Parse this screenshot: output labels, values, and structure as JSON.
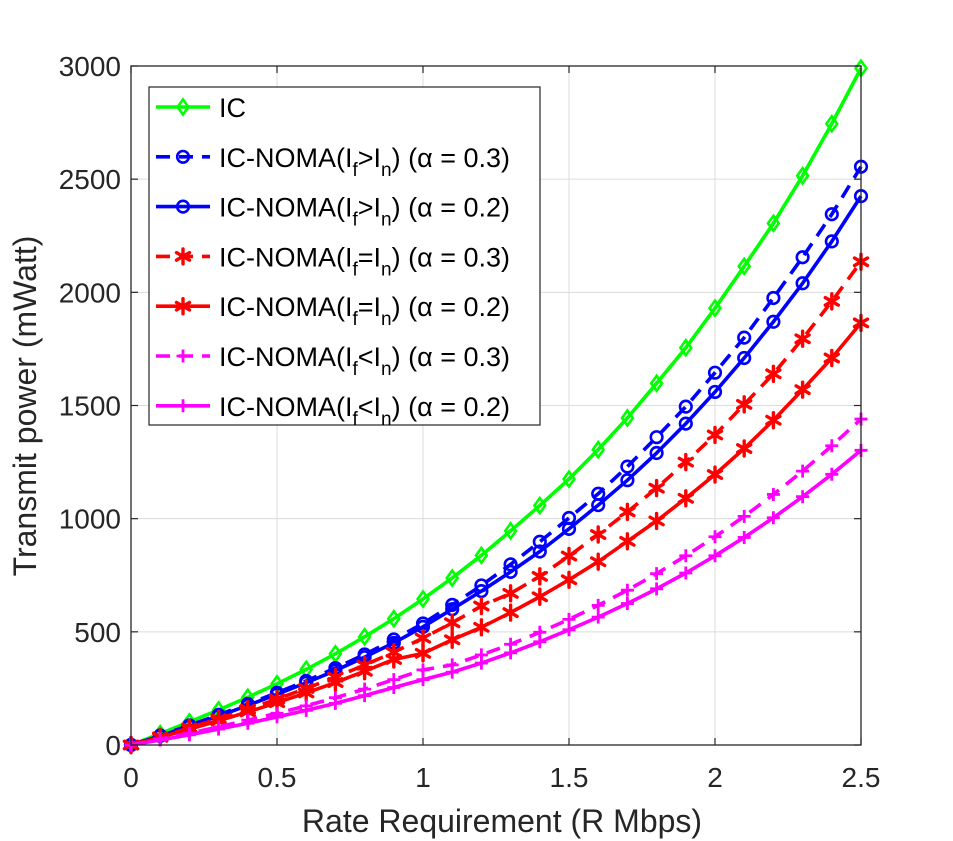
{
  "chart_data": {
    "type": "line",
    "xlabel": "Rate Requirement (R Mbps)",
    "ylabel": "Transmit power (mWatt)",
    "xlim": [
      0,
      2.5
    ],
    "ylim": [
      0,
      3000
    ],
    "xticks": [
      0,
      0.5,
      1,
      1.5,
      2,
      2.5
    ],
    "xtick_labels": [
      "0",
      "0.5",
      "1",
      "1.5",
      "2",
      "2.5"
    ],
    "yticks": [
      0,
      500,
      1000,
      1500,
      2000,
      2500,
      3000
    ],
    "ytick_labels": [
      "0",
      "500",
      "1000",
      "1500",
      "2000",
      "2500",
      "3000"
    ],
    "grid": true,
    "legend_position": "top-left",
    "x": [
      0,
      0.1,
      0.2,
      0.3,
      0.4,
      0.5,
      0.6,
      0.7,
      0.8,
      0.9,
      1.0,
      1.1,
      1.2,
      1.3,
      1.4,
      1.5,
      1.6,
      1.7,
      1.8,
      1.9,
      2.0,
      2.1,
      2.2,
      2.3,
      2.4,
      2.5
    ],
    "series": [
      {
        "name": "IC",
        "legend": {
          "pre": "IC",
          "sub1": "",
          "mid": "",
          "sub2": "",
          "post": ""
        },
        "color": "#00ff00",
        "dash": "solid",
        "marker": "diamond",
        "values": [
          0,
          50,
          102,
          155,
          211,
          270,
          334,
          403,
          478,
          558,
          645,
          738,
          838,
          946,
          1058,
          1175,
          1305,
          1445,
          1598,
          1755,
          1930,
          2115,
          2305,
          2515,
          2745,
          2990
        ]
      },
      {
        "name": "IC-NOMA(If>In) (α = 0.3)",
        "legend": {
          "pre": "IC-NOMA(I",
          "sub1": "f",
          "mid": ">I",
          "sub2": "n",
          "post": ") (α = 0.3)"
        },
        "color": "#0000ff",
        "dash": "dashed",
        "marker": "circle",
        "values": [
          0,
          42,
          87,
          133,
          181,
          231,
          283,
          340,
          400,
          466,
          537,
          619,
          705,
          798,
          898,
          1003,
          1110,
          1230,
          1360,
          1495,
          1645,
          1800,
          1975,
          2155,
          2345,
          2555
        ]
      },
      {
        "name": "IC-NOMA(If>In) (α = 0.2)",
        "legend": {
          "pre": "IC-NOMA(I",
          "sub1": "f",
          "mid": ">I",
          "sub2": "n",
          "post": ") (α = 0.2)"
        },
        "color": "#0000ff",
        "dash": "solid",
        "marker": "circle",
        "values": [
          0,
          40,
          83,
          128,
          175,
          224,
          275,
          329,
          388,
          451,
          522,
          600,
          680,
          765,
          855,
          955,
          1060,
          1170,
          1290,
          1420,
          1560,
          1710,
          1870,
          2040,
          2225,
          2425
        ]
      },
      {
        "name": "IC-NOMA(If=In) (α = 0.3)",
        "legend": {
          "pre": "IC-NOMA(I",
          "sub1": "f",
          "mid": "=I",
          "sub2": "n",
          "post": ") (α = 0.3)"
        },
        "color": "#ff0000",
        "dash": "dashed",
        "marker": "star",
        "values": [
          0,
          36,
          76,
          116,
          158,
          203,
          250,
          300,
          353,
          410,
          472,
          540,
          614,
          670,
          745,
          835,
          930,
          1030,
          1135,
          1250,
          1370,
          1505,
          1640,
          1795,
          1960,
          2135
        ]
      },
      {
        "name": "IC-NOMA(If=In) (α = 0.2)",
        "legend": {
          "pre": "IC-NOMA(I",
          "sub1": "f",
          "mid": "=I",
          "sub2": "n",
          "post": ") (α = 0.2)"
        },
        "color": "#ff0000",
        "dash": "solid",
        "marker": "star",
        "values": [
          0,
          34,
          70,
          107,
          146,
          187,
          230,
          276,
          326,
          378,
          405,
          465,
          520,
          585,
          655,
          730,
          810,
          900,
          990,
          1090,
          1195,
          1310,
          1435,
          1570,
          1710,
          1865
        ]
      },
      {
        "name": "IC-NOMA(If<In) (α = 0.3)",
        "legend": {
          "pre": "IC-NOMA(I",
          "sub1": "f",
          "mid": "<I",
          "sub2": "n",
          "post": ") (α = 0.3)"
        },
        "color": "#ff00ff",
        "dash": "dashed",
        "marker": "plus",
        "values": [
          0,
          26,
          52,
          80,
          110,
          140,
          173,
          209,
          247,
          289,
          332,
          354,
          398,
          445,
          498,
          555,
          617,
          684,
          757,
          836,
          920,
          1010,
          1107,
          1210,
          1322,
          1440
        ]
      },
      {
        "name": "IC-NOMA(If<In) (α = 0.2)",
        "legend": {
          "pre": "IC-NOMA(I",
          "sub1": "f",
          "mid": "<I",
          "sub2": "n",
          "post": ") (α = 0.2)"
        },
        "color": "#ff00ff",
        "dash": "solid",
        "marker": "plus",
        "values": [
          0,
          22,
          45,
          70,
          96,
          124,
          153,
          184,
          218,
          254,
          289,
          322,
          362,
          407,
          456,
          509,
          565,
          625,
          690,
          760,
          836,
          917,
          1004,
          1097,
          1196,
          1302
        ]
      }
    ]
  }
}
